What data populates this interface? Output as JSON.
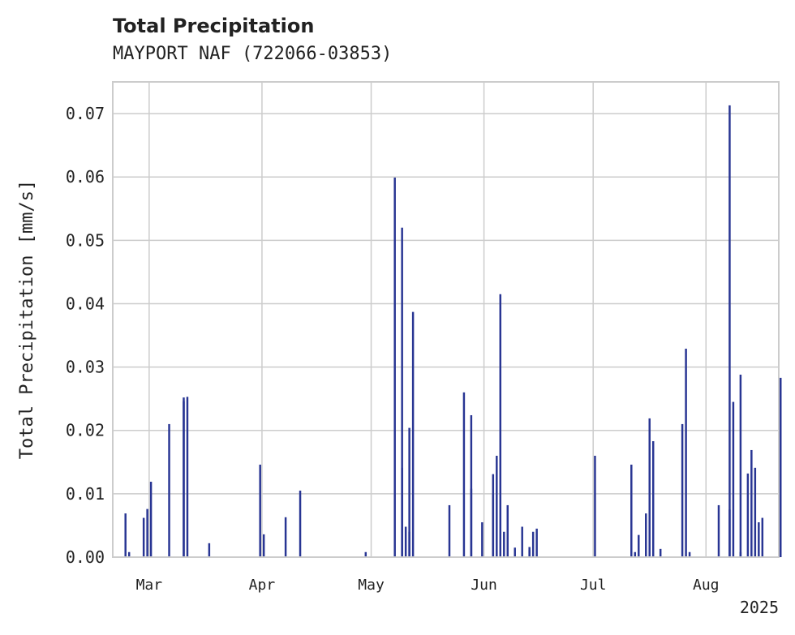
{
  "chart_data": {
    "type": "bar",
    "title": "Total Precipitation",
    "subtitle": "MAYPORT NAF (722066-03853)",
    "ylabel": "Total Precipitation [mm/s]",
    "xlabel": "",
    "year_label": "2025",
    "ylim": [
      0,
      0.075
    ],
    "xlim": [
      "2025-02-19",
      "2025-08-21"
    ],
    "yticks": [
      "0.00",
      "0.01",
      "0.02",
      "0.03",
      "0.04",
      "0.05",
      "0.06",
      "0.07"
    ],
    "xticks": [
      {
        "date": "2025-03-01",
        "label": "Mar"
      },
      {
        "date": "2025-04-01",
        "label": "Apr"
      },
      {
        "date": "2025-05-01",
        "label": "May"
      },
      {
        "date": "2025-06-01",
        "label": "Jun"
      },
      {
        "date": "2025-07-01",
        "label": "Jul"
      },
      {
        "date": "2025-08-01",
        "label": "Aug"
      }
    ],
    "grid": true,
    "bar_color": "#283593",
    "x": [
      "2025-02-22",
      "2025-02-23",
      "2025-02-27",
      "2025-02-28",
      "2025-03-01",
      "2025-03-06",
      "2025-03-10",
      "2025-03-10",
      "2025-03-11",
      "2025-03-17",
      "2025-03-31",
      "2025-04-01",
      "2025-04-07",
      "2025-04-11",
      "2025-04-29",
      "2025-05-07",
      "2025-05-09",
      "2025-05-09",
      "2025-05-10",
      "2025-05-11",
      "2025-05-11",
      "2025-05-12",
      "2025-05-22",
      "2025-05-26",
      "2025-05-28",
      "2025-05-28",
      "2025-05-31",
      "2025-06-03",
      "2025-06-03",
      "2025-06-04",
      "2025-06-05",
      "2025-06-06",
      "2025-06-07",
      "2025-06-09",
      "2025-06-11",
      "2025-06-13",
      "2025-06-13",
      "2025-06-14",
      "2025-06-15",
      "2025-07-01",
      "2025-07-11",
      "2025-07-12",
      "2025-07-13",
      "2025-07-15",
      "2025-07-16",
      "2025-07-17",
      "2025-07-19",
      "2025-07-25",
      "2025-07-26",
      "2025-07-27",
      "2025-08-04",
      "2025-08-07",
      "2025-08-07",
      "2025-08-08",
      "2025-08-10",
      "2025-08-10",
      "2025-08-12",
      "2025-08-13",
      "2025-08-14",
      "2025-08-15",
      "2025-08-16",
      "2025-08-21"
    ],
    "values": [
      0.0069,
      0.0008,
      0.0062,
      0.0076,
      0.0119,
      0.021,
      0.0246,
      0.0252,
      0.0253,
      0.0022,
      0.0146,
      0.0036,
      0.0063,
      0.0105,
      0.0008,
      0.0599,
      0.0141,
      0.052,
      0.0048,
      0.004,
      0.0204,
      0.0387,
      0.0082,
      0.026,
      0.0224,
      0.0108,
      0.0055,
      0.0131,
      0.0099,
      0.016,
      0.0415,
      0.004,
      0.0082,
      0.0015,
      0.0048,
      0.0011,
      0.0016,
      0.004,
      0.0045,
      0.016,
      0.0146,
      0.0008,
      0.0035,
      0.0069,
      0.0219,
      0.0183,
      0.0013,
      0.021,
      0.0329,
      0.0008,
      0.0082,
      0.0713,
      0.0075,
      0.0245,
      0.0288,
      0.0008,
      0.0132,
      0.0169,
      0.0141,
      0.0055,
      0.0062,
      0.0283
    ]
  }
}
